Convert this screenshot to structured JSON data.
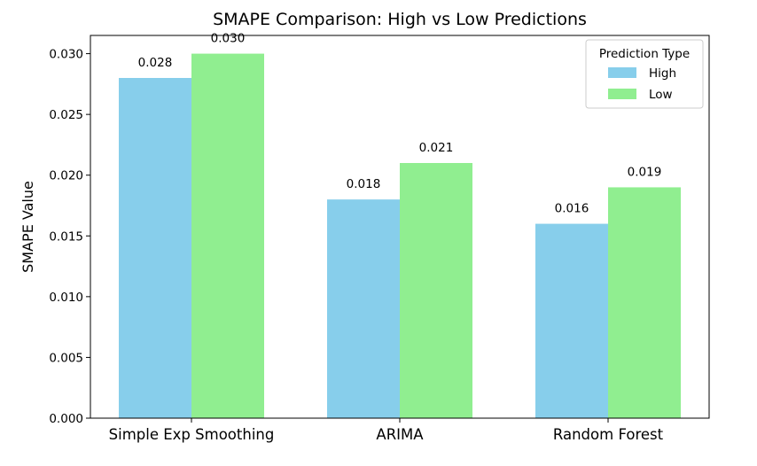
{
  "chart_data": {
    "type": "bar",
    "title": "SMAPE Comparison: High vs Low Predictions",
    "xlabel": "",
    "ylabel": "SMAPE Value",
    "ylim": [
      0,
      0.0315
    ],
    "yticks": [
      "0.000",
      "0.005",
      "0.010",
      "0.015",
      "0.020",
      "0.025",
      "0.030"
    ],
    "categories": [
      "Simple Exp Smoothing",
      "ARIMA",
      "Random Forest"
    ],
    "series": [
      {
        "name": "High",
        "values": [
          0.028,
          0.018,
          0.016
        ],
        "labels": [
          "0.028",
          "0.018",
          "0.016"
        ],
        "color": "#87ceeb"
      },
      {
        "name": "Low",
        "values": [
          0.03,
          0.021,
          0.019
        ],
        "labels": [
          "0.030",
          "0.021",
          "0.019"
        ],
        "color": "#90ee90"
      }
    ],
    "legend": {
      "title": "Prediction Type",
      "placement": "top-right"
    },
    "grid": false
  }
}
